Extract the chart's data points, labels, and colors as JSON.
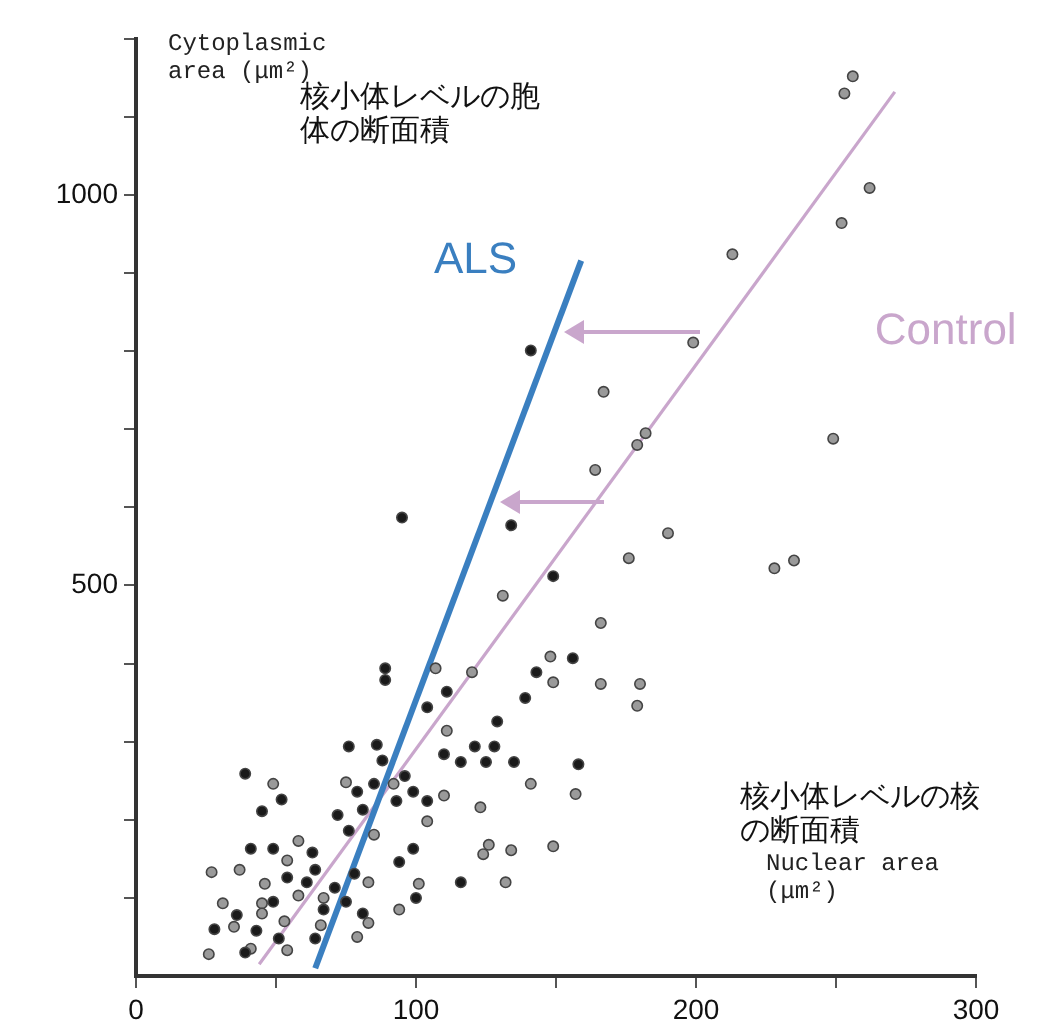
{
  "chart_data": {
    "type": "scatter",
    "xlabel": "Nuclear area (μm²)",
    "ylabel": "Cytoplasmic area (μm²)",
    "annotations": [
      "核小体レベルの胞体の断面積",
      "核小体レベルの核の断面積"
    ],
    "xlim": [
      0,
      300
    ],
    "xticks": [
      0,
      {
        "value": 50,
        "label": null
      },
      100,
      {
        "value": 150,
        "label": null
      },
      200,
      {
        "value": 250,
        "label": null
      },
      300
    ],
    "ylim": [
      0,
      1200
    ],
    "yticks": [
      {
        "value": 100,
        "label": null
      },
      {
        "value": 200,
        "label": null
      },
      {
        "value": 300,
        "label": null
      },
      {
        "value": 400,
        "label": null
      },
      500,
      {
        "value": 600,
        "label": null
      },
      {
        "value": 700,
        "label": null
      },
      {
        "value": 800,
        "label": null
      },
      {
        "value": 900,
        "label": null
      },
      1000,
      {
        "value": 1100,
        "label": null
      },
      {
        "value": 1200,
        "label": null
      }
    ],
    "grid": false,
    "legend": false,
    "series": [
      {
        "marker": "circle",
        "color": "#1a1a1a",
        "x": [
          89,
          89,
          111,
          104,
          129,
          76,
          86,
          88,
          110,
          121,
          128,
          116,
          125,
          135,
          39,
          85,
          96,
          79,
          99,
          52,
          81,
          93,
          104,
          45,
          72,
          76,
          41,
          49,
          63,
          99,
          94,
          54,
          64,
          61,
          71,
          78,
          116,
          49,
          67,
          75,
          100,
          36,
          81,
          28,
          43,
          51,
          64,
          39,
          141,
          95,
          134,
          149,
          156,
          143,
          139,
          158
        ],
        "values": [
          394,
          379,
          364,
          344,
          326,
          294,
          296,
          276,
          284,
          294,
          294,
          274,
          274,
          274,
          259,
          246,
          256,
          236,
          236,
          226,
          213,
          224,
          224,
          211,
          206,
          186,
          163,
          163,
          158,
          163,
          146,
          126,
          136,
          120,
          113,
          131,
          120,
          95,
          85,
          95,
          100,
          78,
          80,
          60,
          58,
          48,
          48,
          30,
          801,
          587,
          577,
          512,
          407,
          389,
          356,
          271
        ]
      },
      {
        "marker": "circle",
        "color": "#9a9a9a",
        "x": [
          107,
          120,
          111,
          123,
          110,
          104,
          75,
          92,
          49,
          58,
          85,
          126,
          134,
          124,
          27,
          37,
          54,
          46,
          45,
          58,
          67,
          83,
          101,
          132,
          31,
          45,
          94,
          35,
          53,
          83,
          79,
          54,
          41,
          26,
          66,
          256,
          253,
          262,
          252,
          213,
          199,
          167,
          182,
          179,
          164,
          249,
          190,
          176,
          235,
          228,
          131,
          166,
          148,
          149,
          166,
          180,
          179,
          141,
          157,
          149
        ],
        "values": [
          394,
          389,
          314,
          216,
          231,
          198,
          248,
          246,
          246,
          173,
          181,
          168,
          161,
          156,
          133,
          136,
          148,
          118,
          93,
          103,
          100,
          120,
          118,
          120,
          93,
          80,
          85,
          63,
          70,
          68,
          50,
          33,
          35,
          28,
          65,
          1152,
          1130,
          1009,
          964,
          924,
          811,
          748,
          695,
          680,
          648,
          688,
          567,
          535,
          532,
          522,
          487,
          452,
          409,
          376,
          374,
          374,
          346,
          246,
          233,
          166
        ]
      },
      {
        "type": "line",
        "marker": "none",
        "name": "ALS",
        "color": "#3a7fc0",
        "x": [
          64,
          159
        ],
        "values": [
          10,
          916
        ]
      },
      {
        "type": "line",
        "marker": "none",
        "name": "Control",
        "color": "#c9a6cc",
        "x": [
          44,
          271
        ],
        "values": [
          15,
          1132
        ]
      }
    ]
  }
}
